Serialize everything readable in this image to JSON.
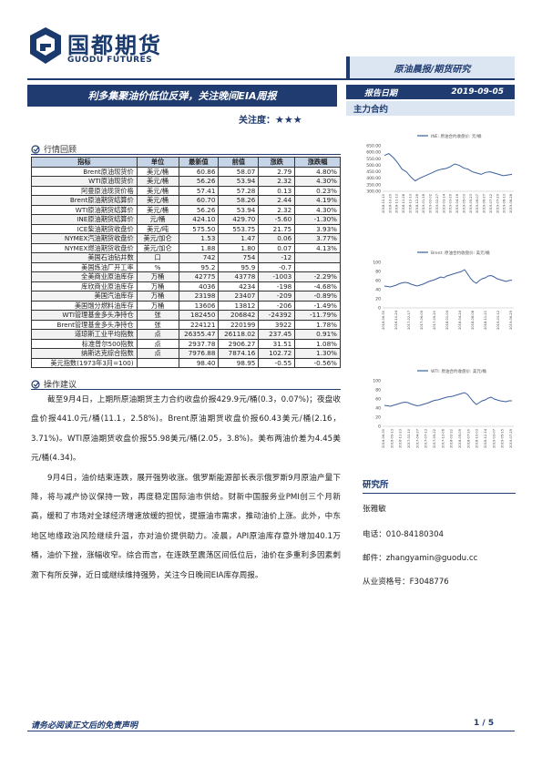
{
  "header": {
    "logo_cn": "国都期货",
    "logo_en": "GUODU FUTURES",
    "category": "原油晨报/期货研究",
    "title": "利多集聚油价低位反弹，关注晚间EIA周报",
    "attention_label": "关注度：",
    "attention_stars": "★★★",
    "date_label": "报告日期",
    "date_value": "2019-09-05",
    "contract_label": "主力合约"
  },
  "market": {
    "section_title": "行情回顾",
    "columns": [
      "指标",
      "单位",
      "最新值",
      "前值",
      "涨跌",
      "涨跌幅"
    ],
    "rows": [
      [
        "Brent原油现货价",
        "美元/桶",
        "60.86",
        "58.07",
        "2.79",
        "4.80%"
      ],
      [
        "WTI原油现货价",
        "美元/桶",
        "56.26",
        "53.94",
        "2.32",
        "4.30%"
      ],
      [
        "阿曼原油现货价格",
        "美元/桶",
        "57.41",
        "57.28",
        "0.13",
        "0.23%"
      ],
      [
        "Brent原油期货结算价",
        "美元/桶",
        "60.70",
        "58.26",
        "2.44",
        "4.19%"
      ],
      [
        "WTI原油期货结算价",
        "美元/桶",
        "56.26",
        "53.94",
        "2.32",
        "4.30%"
      ],
      [
        "INE原油期货结算价",
        "元/桶",
        "424.10",
        "429.70",
        "-5.60",
        "-1.30%"
      ],
      [
        "ICE柴油期货收盘价",
        "美元/吨",
        "575.50",
        "553.75",
        "21.75",
        "3.93%"
      ],
      [
        "NYMEX汽油期货收盘价",
        "美元/加仑",
        "1.53",
        "1.47",
        "0.06",
        "3.77%"
      ],
      [
        "NYMEX燃油期货收盘价",
        "美元/加仑",
        "1.88",
        "1.80",
        "0.07",
        "4.13%"
      ],
      [
        "美国石油钻井数",
        "口",
        "742",
        "754",
        "-12",
        ""
      ],
      [
        "美国炼油厂开工率",
        "%",
        "95.2",
        "95.9",
        "-0.7",
        ""
      ],
      [
        "全美商业原油库存",
        "万桶",
        "42775",
        "43778",
        "-1003",
        "-2.29%"
      ],
      [
        "库欣商业原油库存",
        "万桶",
        "4036",
        "4234",
        "-198",
        "-4.68%"
      ],
      [
        "美国汽油库存",
        "万桶",
        "23198",
        "23407",
        "-209",
        "-0.89%"
      ],
      [
        "美国馏分燃料油库存",
        "万桶",
        "13606",
        "13812",
        "-206",
        "-1.49%"
      ],
      [
        "WTI管理基金多头净持仓",
        "张",
        "182450",
        "206842",
        "-24392",
        "-11.79%"
      ],
      [
        "Brent管理基金多头净持仓",
        "张",
        "224121",
        "220199",
        "3922",
        "1.78%"
      ],
      [
        "道琼斯工业平均指数",
        "点",
        "26355.47",
        "26118.02",
        "237.45",
        "0.91%"
      ],
      [
        "标准普尔500指数",
        "点",
        "2937.78",
        "2906.27",
        "31.51",
        "1.08%"
      ],
      [
        "纳斯达克综合指数",
        "点",
        "7976.88",
        "7874.16",
        "102.72",
        "1.30%"
      ],
      [
        "美元指数(1973年3月=100)",
        "",
        "98.40",
        "98.95",
        "-0.55",
        "-0.56%"
      ]
    ]
  },
  "advice": {
    "section_title": "操作建议",
    "paragraphs": [
      "截至9月4日，上期所原油期货主力合约收盘价报429.9元/桶(0.3，0.07%)；夜盘收盘价报441.0元/桶(11.1，2.58%)。Brent原油期货收盘价报60.43美元/桶(2.16，3.71%)。WTI原油期货收盘价报55.98美元/桶(2.05，3.8%)。美布两油价差为4.45美元/桶(4.34)。",
      "9月4日，油价结束连跌，展开强势收涨。俄罗斯能源部长表示俄罗斯9月原油产量下降，将与减产协议保持一致，再度稳定国际油市供给。财新中国服务业PMI创三个月新高，缓和了市场对全球经济增速放缓的担忧，提振油市需求，推动油价上涨。此外，中东地区地缘政治风险继续升温，亦对油价提供助力。凌晨，API原油库存意外增加40.1万桶，油价下挫，涨幅收窄。综合而言，在连跌至震荡区间低位后，油价在多重利多因素刺激下有所反弹，近日或继续维持强势，关注今日晚间EIA库存周报。"
    ]
  },
  "charts": [
    {
      "legend": "INE: 原油合约收盘价: 元/桶",
      "yticks": [
        "650.00",
        "600.00",
        "550.00",
        "500.00",
        "450.00",
        "400.00",
        "350.00",
        "300.00"
      ],
      "xticks": [
        "2018-10-10",
        "2018-10-29",
        "2018-11-13",
        "2018-11-28",
        "2018-12-13",
        "2018-12-28",
        "2019-01-18",
        "2019-02-02",
        "2019-02-27",
        "2019-03-14",
        "2019-03-29",
        "2019-04-16",
        "2019-05-03",
        "2019-05-23",
        "2019-06-07",
        "2019-06-27",
        "2019-07-12",
        "2019-07-29",
        "2019-08-13",
        "2019-08-28"
      ],
      "values": [
        575,
        590,
        560,
        520,
        470,
        450,
        410,
        380,
        400,
        415,
        430,
        445,
        460,
        470,
        475,
        490,
        510,
        500,
        480,
        470,
        450,
        440,
        430,
        445,
        450,
        440,
        430,
        420,
        425,
        430
      ]
    },
    {
      "legend": "Brent: 原油合约收盘价: 美元/桶",
      "yticks": [
        "100",
        "80",
        "60",
        "40",
        "20",
        "0"
      ],
      "xticks": [
        "2016-06-30",
        "2016-10-24",
        "2017-02-17",
        "2017-06-05",
        "2017-09-20",
        "2018-01-04",
        "2018-04-24",
        "2018-08-08",
        "2018-11-21",
        "2019-03-12",
        "2019-06-25"
      ],
      "values": [
        48,
        47,
        46,
        48,
        50,
        53,
        55,
        56,
        55,
        52,
        50,
        48,
        50,
        52,
        55,
        58,
        60,
        62,
        65,
        68,
        66,
        70,
        72,
        74,
        76,
        78,
        80,
        84,
        75,
        65,
        58,
        54,
        60,
        64,
        66,
        70,
        71,
        68,
        64,
        62,
        60,
        58,
        60,
        61
      ]
    },
    {
      "legend": "WTI: 原油合约收盘价: 美元/桶",
      "yticks": [
        "100",
        "80",
        "60",
        "40",
        "20",
        "0"
      ],
      "xticks": [
        "2016-06-30",
        "2016-09-13",
        "2016-11-23",
        "2017-02-10",
        "2017-04-27",
        "2017-07-13",
        "2017-09-22",
        "2017-12-06",
        "2018-02-22",
        "2018-05-09",
        "2018-07-20",
        "2018-10-03",
        "2018-12-14",
        "2019-03-07",
        "2019-05-15",
        "2019-07-25"
      ],
      "values": [
        46,
        45,
        44,
        46,
        48,
        50,
        52,
        53,
        52,
        49,
        47,
        45,
        46,
        48,
        50,
        52,
        55,
        57,
        58,
        60,
        62,
        64,
        65,
        66,
        68,
        70,
        72,
        74,
        70,
        62,
        54,
        48,
        52,
        56,
        58,
        62,
        64,
        60,
        58,
        56,
        55,
        54,
        56,
        56
      ]
    }
  ],
  "research": {
    "heading": "研究所",
    "author": "张雅敏",
    "phone": "电话：010-84180304",
    "email": "邮件：zhangyamin@guodu.cc",
    "license": "从业资格号：F3048776"
  },
  "footer": {
    "disclaimer": "请务必阅读正文后的免责声明",
    "page": "1 / 5"
  },
  "colors": {
    "brand": "#1f3b70",
    "band": "#dce6f2",
    "line": "#3a5f9f"
  }
}
